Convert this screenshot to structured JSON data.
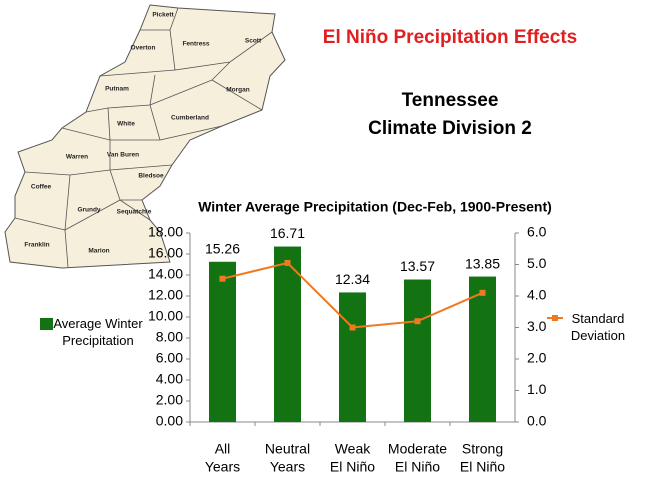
{
  "header": {
    "title": "El Niño Precipitation Effects",
    "subtitle": [
      "Tennessee",
      "Climate Division 2"
    ]
  },
  "map": {
    "counties": [
      {
        "label": "Pickett"
      },
      {
        "label": "Overton"
      },
      {
        "label": "Fentress"
      },
      {
        "label": "Scott"
      },
      {
        "label": "Putnam"
      },
      {
        "label": "Morgan"
      },
      {
        "label": "White"
      },
      {
        "label": "Cumberland"
      },
      {
        "label": "Warren"
      },
      {
        "label": "Van Buren"
      },
      {
        "label": "Bledsoe"
      },
      {
        "label": "Coffee"
      },
      {
        "label": "Grundy"
      },
      {
        "label": "Sequatchie"
      },
      {
        "label": "Franklin"
      },
      {
        "label": "Marion"
      }
    ]
  },
  "chart_data": {
    "type": "bar",
    "title": "Winter Average Precipitation (Dec-Feb, 1900-Present)",
    "categories": [
      [
        "All",
        "Years"
      ],
      [
        "Neutral",
        "Years"
      ],
      [
        "Weak",
        "El Niño"
      ],
      [
        "Moderate",
        "El Niño"
      ],
      [
        "Strong",
        "El Niño"
      ]
    ],
    "series": [
      {
        "name": "Average Winter Precipitation",
        "type": "bar",
        "color": "#137313",
        "values": [
          15.26,
          16.71,
          12.34,
          13.57,
          13.85
        ]
      },
      {
        "name": "Standard Deviation",
        "type": "line",
        "axis": "y2",
        "color": "#f07820",
        "values": [
          4.55,
          5.05,
          3.0,
          3.2,
          4.1
        ]
      }
    ],
    "ylim": [
      0,
      18
    ],
    "yticks": [
      {
        "value": 0,
        "label": "0.00"
      },
      {
        "value": 2,
        "label": "2.00"
      },
      {
        "value": 4,
        "label": "4.00"
      },
      {
        "value": 6,
        "label": "6.00"
      },
      {
        "value": 8,
        "label": "8.00"
      },
      {
        "value": 10,
        "label": "10.00"
      },
      {
        "value": 12,
        "label": "12.00"
      },
      {
        "value": 14,
        "label": "14.00"
      },
      {
        "value": 16,
        "label": "16.00"
      },
      {
        "value": 18,
        "label": "18.00"
      }
    ],
    "y2lim": [
      0,
      6
    ],
    "y2ticks": [
      {
        "value": 0,
        "label": "0.0"
      },
      {
        "value": 1,
        "label": "1.0"
      },
      {
        "value": 2,
        "label": "2.0"
      },
      {
        "value": 3,
        "label": "3.0"
      },
      {
        "value": 4,
        "label": "4.0"
      },
      {
        "value": 5,
        "label": "5.0"
      },
      {
        "value": 6,
        "label": "6.0"
      }
    ],
    "grid": false
  }
}
